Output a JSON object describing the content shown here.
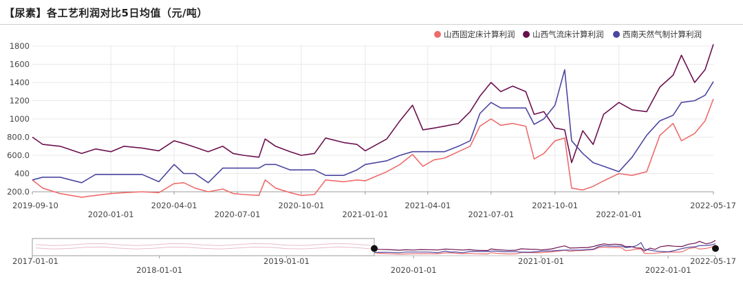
{
  "title": "【尿素】各工艺利润对比5日均值（元/吨）",
  "chart_data": {
    "type": "line",
    "title": "【尿素】各工艺利润对比5日均值（元/吨）",
    "xlabel": "",
    "ylabel": "",
    "x_start": "2019-09-10",
    "x_end": "2022-05-17",
    "x_ticks": [
      "2019-09-10",
      "2020-01-01",
      "2020-04-01",
      "2020-07-01",
      "2020-10-01",
      "2021-01-01",
      "2021-04-01",
      "2021-07-01",
      "2021-10-01",
      "2022-01-01",
      "2022-05-17"
    ],
    "ylim": [
      200,
      1800
    ],
    "y_ticks": [
      "200.0",
      "400",
      "600.0",
      "800.0",
      "1000",
      "1200",
      "1400",
      "1600",
      "1800"
    ],
    "grid": true,
    "legend_position": "top-right",
    "series": [
      {
        "name": "山西固定床计算利润",
        "color": "#ee6b6b",
        "points": [
          [
            "2019-09-10",
            330
          ],
          [
            "2019-09-25",
            240
          ],
          [
            "2019-10-20",
            180
          ],
          [
            "2019-11-20",
            140
          ],
          [
            "2019-12-10",
            160
          ],
          [
            "2020-01-01",
            180
          ],
          [
            "2020-01-20",
            190
          ],
          [
            "2020-02-15",
            200
          ],
          [
            "2020-03-10",
            190
          ],
          [
            "2020-04-01",
            290
          ],
          [
            "2020-04-15",
            300
          ],
          [
            "2020-05-01",
            240
          ],
          [
            "2020-05-20",
            200
          ],
          [
            "2020-06-10",
            230
          ],
          [
            "2020-06-25",
            180
          ],
          [
            "2020-07-10",
            170
          ],
          [
            "2020-08-01",
            160
          ],
          [
            "2020-08-10",
            330
          ],
          [
            "2020-08-25",
            240
          ],
          [
            "2020-09-15",
            190
          ],
          [
            "2020-10-01",
            160
          ],
          [
            "2020-10-20",
            170
          ],
          [
            "2020-11-05",
            330
          ],
          [
            "2020-12-01",
            310
          ],
          [
            "2020-12-20",
            330
          ],
          [
            "2021-01-01",
            320
          ],
          [
            "2021-02-01",
            420
          ],
          [
            "2021-02-20",
            500
          ],
          [
            "2021-03-10",
            610
          ],
          [
            "2021-03-25",
            480
          ],
          [
            "2021-04-10",
            550
          ],
          [
            "2021-04-25",
            570
          ],
          [
            "2021-05-15",
            640
          ],
          [
            "2021-06-01",
            700
          ],
          [
            "2021-06-15",
            920
          ],
          [
            "2021-07-01",
            1000
          ],
          [
            "2021-07-15",
            930
          ],
          [
            "2021-08-01",
            950
          ],
          [
            "2021-08-20",
            920
          ],
          [
            "2021-09-01",
            560
          ],
          [
            "2021-09-15",
            620
          ],
          [
            "2021-10-01",
            760
          ],
          [
            "2021-10-15",
            790
          ],
          [
            "2021-10-25",
            240
          ],
          [
            "2021-11-10",
            220
          ],
          [
            "2021-11-25",
            260
          ],
          [
            "2021-12-10",
            320
          ],
          [
            "2022-01-01",
            400
          ],
          [
            "2022-01-20",
            380
          ],
          [
            "2022-02-10",
            420
          ],
          [
            "2022-03-01",
            820
          ],
          [
            "2022-03-20",
            950
          ],
          [
            "2022-04-01",
            760
          ],
          [
            "2022-04-20",
            840
          ],
          [
            "2022-05-05",
            980
          ],
          [
            "2022-05-17",
            1220
          ]
        ]
      },
      {
        "name": "山西气流床计算利润",
        "color": "#6a0f4d",
        "points": [
          [
            "2019-09-10",
            800
          ],
          [
            "2019-09-25",
            720
          ],
          [
            "2019-10-20",
            700
          ],
          [
            "2019-11-20",
            620
          ],
          [
            "2019-12-10",
            670
          ],
          [
            "2020-01-01",
            640
          ],
          [
            "2020-01-20",
            700
          ],
          [
            "2020-02-15",
            680
          ],
          [
            "2020-03-10",
            650
          ],
          [
            "2020-04-01",
            760
          ],
          [
            "2020-04-15",
            730
          ],
          [
            "2020-05-01",
            690
          ],
          [
            "2020-05-20",
            640
          ],
          [
            "2020-06-10",
            700
          ],
          [
            "2020-06-25",
            620
          ],
          [
            "2020-07-10",
            600
          ],
          [
            "2020-08-01",
            580
          ],
          [
            "2020-08-10",
            780
          ],
          [
            "2020-08-25",
            700
          ],
          [
            "2020-09-15",
            640
          ],
          [
            "2020-10-01",
            600
          ],
          [
            "2020-10-20",
            620
          ],
          [
            "2020-11-05",
            790
          ],
          [
            "2020-12-01",
            740
          ],
          [
            "2020-12-20",
            720
          ],
          [
            "2021-01-01",
            650
          ],
          [
            "2021-02-01",
            780
          ],
          [
            "2021-02-20",
            980
          ],
          [
            "2021-03-10",
            1150
          ],
          [
            "2021-03-25",
            880
          ],
          [
            "2021-04-10",
            900
          ],
          [
            "2021-04-25",
            920
          ],
          [
            "2021-05-15",
            950
          ],
          [
            "2021-06-01",
            1080
          ],
          [
            "2021-06-15",
            1250
          ],
          [
            "2021-07-01",
            1400
          ],
          [
            "2021-07-15",
            1300
          ],
          [
            "2021-08-01",
            1360
          ],
          [
            "2021-08-20",
            1300
          ],
          [
            "2021-09-01",
            1050
          ],
          [
            "2021-09-15",
            1080
          ],
          [
            "2021-10-01",
            900
          ],
          [
            "2021-10-15",
            880
          ],
          [
            "2021-10-25",
            520
          ],
          [
            "2021-11-10",
            870
          ],
          [
            "2021-11-25",
            720
          ],
          [
            "2021-12-10",
            1050
          ],
          [
            "2022-01-01",
            1180
          ],
          [
            "2022-01-20",
            1100
          ],
          [
            "2022-02-10",
            1080
          ],
          [
            "2022-03-01",
            1350
          ],
          [
            "2022-03-20",
            1480
          ],
          [
            "2022-04-01",
            1700
          ],
          [
            "2022-04-20",
            1400
          ],
          [
            "2022-05-05",
            1540
          ],
          [
            "2022-05-17",
            1820
          ]
        ]
      },
      {
        "name": "西南天然气制计算利润",
        "color": "#4b46a0",
        "points": [
          [
            "2019-09-10",
            330
          ],
          [
            "2019-09-25",
            360
          ],
          [
            "2019-10-20",
            360
          ],
          [
            "2019-11-20",
            300
          ],
          [
            "2019-12-10",
            390
          ],
          [
            "2020-01-01",
            390
          ],
          [
            "2020-01-20",
            390
          ],
          [
            "2020-02-15",
            390
          ],
          [
            "2020-03-10",
            310
          ],
          [
            "2020-04-01",
            500
          ],
          [
            "2020-04-15",
            400
          ],
          [
            "2020-05-01",
            400
          ],
          [
            "2020-05-20",
            300
          ],
          [
            "2020-06-10",
            460
          ],
          [
            "2020-06-25",
            460
          ],
          [
            "2020-07-10",
            460
          ],
          [
            "2020-08-01",
            460
          ],
          [
            "2020-08-10",
            500
          ],
          [
            "2020-08-25",
            500
          ],
          [
            "2020-09-15",
            440
          ],
          [
            "2020-10-01",
            440
          ],
          [
            "2020-10-20",
            440
          ],
          [
            "2020-11-05",
            380
          ],
          [
            "2020-12-01",
            380
          ],
          [
            "2020-12-20",
            440
          ],
          [
            "2021-01-01",
            500
          ],
          [
            "2021-02-01",
            540
          ],
          [
            "2021-02-20",
            600
          ],
          [
            "2021-03-10",
            640
          ],
          [
            "2021-03-25",
            640
          ],
          [
            "2021-04-10",
            640
          ],
          [
            "2021-04-25",
            640
          ],
          [
            "2021-05-15",
            700
          ],
          [
            "2021-06-01",
            760
          ],
          [
            "2021-06-15",
            1060
          ],
          [
            "2021-07-01",
            1180
          ],
          [
            "2021-07-15",
            1120
          ],
          [
            "2021-08-01",
            1120
          ],
          [
            "2021-08-20",
            1120
          ],
          [
            "2021-09-01",
            940
          ],
          [
            "2021-09-15",
            1000
          ],
          [
            "2021-10-01",
            1150
          ],
          [
            "2021-10-15",
            1540
          ],
          [
            "2021-10-25",
            760
          ],
          [
            "2021-11-10",
            620
          ],
          [
            "2021-11-25",
            520
          ],
          [
            "2021-12-10",
            480
          ],
          [
            "2022-01-01",
            420
          ],
          [
            "2022-01-20",
            580
          ],
          [
            "2022-02-10",
            820
          ],
          [
            "2022-03-01",
            980
          ],
          [
            "2022-03-20",
            1040
          ],
          [
            "2022-04-01",
            1180
          ],
          [
            "2022-04-20",
            1200
          ],
          [
            "2022-05-05",
            1260
          ],
          [
            "2022-05-17",
            1410
          ]
        ]
      }
    ],
    "navigator": {
      "x_start": "2017-01-01",
      "x_end": "2022-05-17",
      "x_ticks": [
        "2017-01-01",
        "2018-01-01",
        "2019-01-01",
        "2020-01-01",
        "2021-01-01",
        "2022-01-01",
        "2022-05-17"
      ],
      "selected_range": [
        "2019-09-10",
        "2022-05-17"
      ]
    }
  }
}
